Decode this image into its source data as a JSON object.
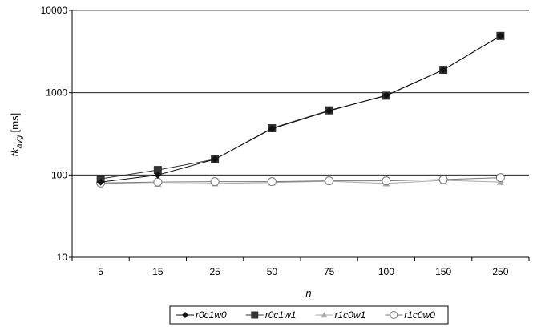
{
  "chart_data": {
    "type": "line",
    "x_scale": "categorical",
    "y_scale": "log",
    "categories": [
      "5",
      "15",
      "25",
      "50",
      "75",
      "100",
      "150",
      "250"
    ],
    "ylim": [
      10,
      10000
    ],
    "y_ticks": [
      "10",
      "100",
      "1000",
      "10000"
    ],
    "xlabel": "n",
    "ylabel_main": "tk",
    "ylabel_sub": "avg",
    "ylabel_unit": " [ms]",
    "grid": "horizontal-major",
    "legend_position": "bottom",
    "series": [
      {
        "name": "r0c1w0",
        "marker": "diamond",
        "color": "#111111",
        "values": [
          82,
          100,
          155,
          365,
          600,
          930,
          1900,
          4900
        ]
      },
      {
        "name": "r0c1w1",
        "marker": "square",
        "color": "#333333",
        "values": [
          90,
          115,
          155,
          370,
          610,
          920,
          1900,
          4900
        ]
      },
      {
        "name": "r1c0w1",
        "marker": "triangle",
        "color": "#aaaaaa",
        "values": [
          80,
          78,
          79,
          81,
          84,
          79,
          86,
          82
        ]
      },
      {
        "name": "r1c0w0",
        "marker": "circle",
        "color": "#777777",
        "values": [
          80,
          82,
          83,
          83,
          85,
          85,
          88,
          93
        ]
      }
    ]
  }
}
